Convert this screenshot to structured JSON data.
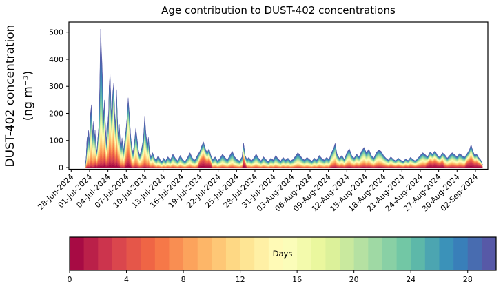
{
  "chart": {
    "title": "Age contribution to DUST-402 concentrations",
    "ylabel_line1": "DUST-402 concentration",
    "ylabel_line2": "(ng m⁻³)",
    "colorbar_label": "Days"
  },
  "style": {
    "background": "#ffffff",
    "text_color": "#000000",
    "spine_color": "#000000"
  },
  "chart_data": {
    "type": "area",
    "subtype": "stacked_area_by_age",
    "title": "Age contribution to DUST-402 concentrations",
    "xlabel": "",
    "ylabel": "DUST-402 concentration (ng m⁻³)",
    "grid": false,
    "legend": "colorbar",
    "ylim": [
      -6,
      537
    ],
    "yticks": [
      0,
      100,
      200,
      300,
      400,
      500
    ],
    "xlim_days": [
      -0.4,
      68.0
    ],
    "x_unit": "days since first tick (28-Jun-2024), major ticks every 3 days",
    "x_tick_days": [
      0,
      3,
      6,
      9,
      12,
      15,
      18,
      21,
      24,
      27,
      30,
      33,
      36,
      39,
      42,
      45,
      48,
      51,
      54,
      57,
      60,
      63,
      66
    ],
    "x_tick_labels": [
      "28-Jun-2024",
      "01-Jul-2024",
      "04-Jul-2024",
      "07-Jul-2024",
      "10-Jul-2024",
      "13-Jul-2024",
      "16-Jul-2024",
      "19-Jul-2024",
      "22-Jul-2024",
      "25-Jul-2024",
      "28-Jul-2024",
      "31-Jul-2024",
      "03-Aug-2024",
      "06-Aug-2024",
      "09-Aug-2024",
      "12-Aug-2024",
      "15-Aug-2024",
      "18-Aug-2024",
      "21-Aug-2024",
      "24-Aug-2024",
      "27-Aug-2024",
      "30-Aug-2024",
      "02-Sep-2024"
    ],
    "colorbar": {
      "label": "Days",
      "min": 0,
      "max": 30,
      "segments": 30,
      "ticks": [
        0,
        4,
        8,
        12,
        16,
        20,
        24,
        28
      ],
      "colormap": "Spectral",
      "colors": [
        "#9e0142",
        "#d53e4f",
        "#f46d43",
        "#fdae61",
        "#fee08b",
        "#ffffbf",
        "#e6f598",
        "#abdda4",
        "#66c2a5",
        "#3288bd",
        "#5e4fa2"
      ]
    },
    "age_band_ranges": [
      [
        0,
        3
      ],
      [
        3,
        7
      ],
      [
        7,
        15
      ],
      [
        15,
        23
      ],
      [
        23,
        30
      ]
    ],
    "profiles": [
      [
        0.03,
        0.1,
        0.34,
        0.25,
        0.28
      ],
      [
        0.1,
        0.16,
        0.34,
        0.22,
        0.18
      ],
      [
        0.02,
        0.07,
        0.24,
        0.3,
        0.37
      ],
      [
        0.22,
        0.2,
        0.22,
        0.17,
        0.19
      ],
      [
        0.06,
        0.13,
        0.28,
        0.27,
        0.26
      ],
      [
        0.04,
        0.08,
        0.22,
        0.21,
        0.45
      ]
    ],
    "points_format": [
      "day_since_28_jun",
      "total_ng_m3",
      "age_profile_index"
    ],
    "points": [
      [
        2.3,
        2,
        0
      ],
      [
        2.45,
        40,
        0
      ],
      [
        2.6,
        115,
        0
      ],
      [
        2.7,
        70,
        0
      ],
      [
        2.85,
        140,
        0
      ],
      [
        3.0,
        95,
        0
      ],
      [
        3.15,
        200,
        0
      ],
      [
        3.3,
        232,
        0
      ],
      [
        3.45,
        120,
        0
      ],
      [
        3.6,
        170,
        0
      ],
      [
        3.75,
        95,
        0
      ],
      [
        3.9,
        140,
        1
      ],
      [
        4.05,
        75,
        1
      ],
      [
        4.2,
        60,
        1
      ],
      [
        4.35,
        110,
        1
      ],
      [
        4.5,
        150,
        1
      ],
      [
        4.65,
        290,
        5
      ],
      [
        4.8,
        512,
        5
      ],
      [
        4.95,
        430,
        5
      ],
      [
        5.05,
        381,
        5
      ],
      [
        5.15,
        300,
        5
      ],
      [
        5.3,
        180,
        1
      ],
      [
        5.45,
        250,
        1
      ],
      [
        5.6,
        150,
        1
      ],
      [
        5.75,
        90,
        1
      ],
      [
        5.9,
        200,
        1
      ],
      [
        6.05,
        140,
        1
      ],
      [
        6.2,
        300,
        1
      ],
      [
        6.35,
        351,
        1
      ],
      [
        6.5,
        230,
        1
      ],
      [
        6.65,
        180,
        1
      ],
      [
        6.8,
        280,
        1
      ],
      [
        6.95,
        313,
        1
      ],
      [
        7.1,
        200,
        1
      ],
      [
        7.25,
        150,
        1
      ],
      [
        7.4,
        288,
        1
      ],
      [
        7.55,
        180,
        1
      ],
      [
        7.7,
        120,
        1
      ],
      [
        7.85,
        160,
        1
      ],
      [
        8.0,
        95,
        0
      ],
      [
        8.15,
        70,
        0
      ],
      [
        8.3,
        110,
        0
      ],
      [
        8.5,
        60,
        0
      ],
      [
        8.7,
        90,
        0
      ],
      [
        8.9,
        130,
        1
      ],
      [
        9.1,
        180,
        1
      ],
      [
        9.3,
        258,
        1
      ],
      [
        9.5,
        200,
        1
      ],
      [
        9.7,
        120,
        1
      ],
      [
        9.9,
        75,
        0
      ],
      [
        10.1,
        55,
        0
      ],
      [
        10.3,
        90,
        0
      ],
      [
        10.55,
        148,
        0
      ],
      [
        10.8,
        100,
        0
      ],
      [
        11.0,
        60,
        0
      ],
      [
        11.2,
        45,
        0
      ],
      [
        11.5,
        70,
        0
      ],
      [
        11.8,
        110,
        0
      ],
      [
        12.0,
        190,
        0
      ],
      [
        12.2,
        130,
        0
      ],
      [
        12.45,
        80,
        0
      ],
      [
        12.6,
        114,
        0
      ],
      [
        12.8,
        60,
        0
      ],
      [
        13.0,
        40,
        0
      ],
      [
        13.3,
        55,
        0
      ],
      [
        13.6,
        35,
        0
      ],
      [
        13.9,
        28,
        2
      ],
      [
        14.2,
        45,
        2
      ],
      [
        14.5,
        30,
        2
      ],
      [
        14.8,
        22,
        2
      ],
      [
        15.1,
        35,
        2
      ],
      [
        15.4,
        25,
        2
      ],
      [
        15.8,
        40,
        2
      ],
      [
        16.2,
        28,
        2
      ],
      [
        16.6,
        50,
        2
      ],
      [
        17.0,
        35,
        2
      ],
      [
        17.4,
        25,
        2
      ],
      [
        17.8,
        45,
        2
      ],
      [
        18.2,
        30,
        2
      ],
      [
        18.6,
        22,
        2
      ],
      [
        19.0,
        38,
        2
      ],
      [
        19.4,
        55,
        2
      ],
      [
        19.8,
        35,
        2
      ],
      [
        20.2,
        28,
        2
      ],
      [
        20.6,
        45,
        2
      ],
      [
        21.0,
        60,
        3
      ],
      [
        21.3,
        80,
        3
      ],
      [
        21.6,
        95,
        3
      ],
      [
        21.9,
        70,
        3
      ],
      [
        22.2,
        55,
        3
      ],
      [
        22.5,
        70,
        3
      ],
      [
        22.8,
        45,
        3
      ],
      [
        23.1,
        30,
        2
      ],
      [
        23.5,
        40,
        2
      ],
      [
        23.9,
        25,
        2
      ],
      [
        24.3,
        35,
        2
      ],
      [
        24.7,
        50,
        2
      ],
      [
        25.1,
        38,
        2
      ],
      [
        25.5,
        28,
        2
      ],
      [
        25.9,
        45,
        2
      ],
      [
        26.3,
        60,
        2
      ],
      [
        26.7,
        40,
        2
      ],
      [
        27.1,
        30,
        2
      ],
      [
        27.5,
        25,
        2
      ],
      [
        27.9,
        40,
        2
      ],
      [
        28.15,
        90,
        3
      ],
      [
        28.4,
        45,
        3
      ],
      [
        28.7,
        30,
        2
      ],
      [
        29.0,
        38,
        2
      ],
      [
        29.4,
        25,
        2
      ],
      [
        29.8,
        35,
        2
      ],
      [
        30.2,
        50,
        2
      ],
      [
        30.6,
        35,
        2
      ],
      [
        31.0,
        25,
        2
      ],
      [
        31.4,
        40,
        2
      ],
      [
        31.8,
        30,
        2
      ],
      [
        32.2,
        22,
        2
      ],
      [
        32.6,
        35,
        2
      ],
      [
        33.0,
        28,
        2
      ],
      [
        33.4,
        45,
        2
      ],
      [
        33.8,
        32,
        2
      ],
      [
        34.2,
        24,
        2
      ],
      [
        34.6,
        38,
        2
      ],
      [
        35.0,
        28,
        2
      ],
      [
        35.4,
        35,
        2
      ],
      [
        35.8,
        25,
        2
      ],
      [
        36.2,
        30,
        2
      ],
      [
        36.6,
        42,
        2
      ],
      [
        37.0,
        55,
        2
      ],
      [
        37.3,
        48,
        2
      ],
      [
        37.7,
        35,
        2
      ],
      [
        38.1,
        28,
        2
      ],
      [
        38.5,
        38,
        2
      ],
      [
        38.9,
        30,
        2
      ],
      [
        39.3,
        24,
        2
      ],
      [
        39.7,
        35,
        2
      ],
      [
        40.1,
        28,
        2
      ],
      [
        40.5,
        45,
        2
      ],
      [
        40.9,
        35,
        2
      ],
      [
        41.3,
        28,
        2
      ],
      [
        41.7,
        38,
        2
      ],
      [
        42.1,
        30,
        2
      ],
      [
        42.5,
        55,
        4
      ],
      [
        42.9,
        75,
        4
      ],
      [
        43.1,
        90,
        4
      ],
      [
        43.4,
        50,
        4
      ],
      [
        43.8,
        35,
        4
      ],
      [
        44.2,
        45,
        4
      ],
      [
        44.6,
        30,
        4
      ],
      [
        45.0,
        55,
        4
      ],
      [
        45.4,
        70,
        4
      ],
      [
        45.8,
        45,
        4
      ],
      [
        46.2,
        35,
        4
      ],
      [
        46.6,
        50,
        4
      ],
      [
        47.0,
        40,
        4
      ],
      [
        47.4,
        60,
        4
      ],
      [
        47.8,
        75,
        4
      ],
      [
        48.2,
        55,
        4
      ],
      [
        48.6,
        68,
        4
      ],
      [
        49.0,
        45,
        4
      ],
      [
        49.4,
        35,
        4
      ],
      [
        49.8,
        55,
        4
      ],
      [
        50.2,
        65,
        4
      ],
      [
        50.6,
        60,
        4
      ],
      [
        51.0,
        45,
        4
      ],
      [
        51.4,
        35,
        4
      ],
      [
        51.8,
        28,
        4
      ],
      [
        52.2,
        40,
        4
      ],
      [
        52.6,
        30,
        4
      ],
      [
        53.0,
        25,
        4
      ],
      [
        53.4,
        35,
        4
      ],
      [
        53.8,
        28,
        4
      ],
      [
        54.2,
        22,
        4
      ],
      [
        54.6,
        32,
        4
      ],
      [
        55.0,
        26,
        4
      ],
      [
        55.4,
        38,
        4
      ],
      [
        55.8,
        30,
        4
      ],
      [
        56.2,
        24,
        4
      ],
      [
        56.6,
        35,
        4
      ],
      [
        57.0,
        45,
        4
      ],
      [
        57.4,
        55,
        4
      ],
      [
        57.8,
        48,
        4
      ],
      [
        58.2,
        40,
        3
      ],
      [
        58.6,
        58,
        3
      ],
      [
        59.0,
        50,
        3
      ],
      [
        59.4,
        62,
        3
      ],
      [
        59.8,
        45,
        3
      ],
      [
        60.2,
        38,
        3
      ],
      [
        60.6,
        55,
        3
      ],
      [
        61.0,
        48,
        4
      ],
      [
        61.4,
        35,
        4
      ],
      [
        61.8,
        45,
        4
      ],
      [
        62.2,
        55,
        4
      ],
      [
        62.6,
        48,
        4
      ],
      [
        63.0,
        40,
        4
      ],
      [
        63.4,
        52,
        4
      ],
      [
        63.8,
        45,
        4
      ],
      [
        64.2,
        38,
        4
      ],
      [
        64.6,
        50,
        3
      ],
      [
        65.0,
        65,
        3
      ],
      [
        65.3,
        85,
        3
      ],
      [
        65.6,
        60,
        3
      ],
      [
        65.9,
        45,
        3
      ],
      [
        66.2,
        50,
        3
      ],
      [
        66.5,
        38,
        3
      ],
      [
        66.8,
        30,
        3
      ],
      [
        67.0,
        22,
        3
      ],
      [
        67.15,
        10,
        3
      ]
    ]
  }
}
